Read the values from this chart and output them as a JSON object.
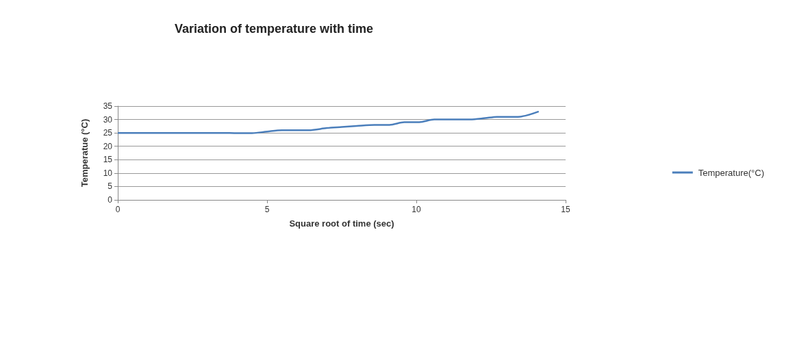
{
  "chart_data": {
    "type": "line",
    "title": "Variation of temperature with time",
    "xlabel": "Square root of time (sec)",
    "ylabel": "Temperatue (°C)",
    "series": [
      {
        "name": "Temperature(°C)",
        "color": "#4a7ebb",
        "x": [
          0,
          1,
          2,
          3,
          3.5,
          4,
          4.5,
          5,
          5.5,
          6,
          6.4,
          7,
          7.5,
          8,
          8.6,
          9.1,
          9.6,
          10.1,
          10.6,
          11.2,
          11.8,
          12.3,
          12.7,
          13.4,
          14.1
        ],
        "values": [
          25,
          25,
          25,
          25,
          25,
          24.9,
          24.9,
          25.5,
          26,
          26,
          26,
          26.8,
          27.2,
          27.6,
          28,
          28,
          29,
          29,
          30,
          30,
          30,
          30.5,
          31,
          31,
          33
        ]
      }
    ],
    "xlim": [
      0,
      15
    ],
    "xticks": [
      0,
      5,
      10,
      15
    ],
    "ylim": [
      0,
      35
    ],
    "yticks": [
      0,
      5,
      10,
      15,
      20,
      25,
      30,
      35
    ],
    "grid": "y",
    "legend": "right",
    "marker": "none",
    "line_style": "solid"
  }
}
